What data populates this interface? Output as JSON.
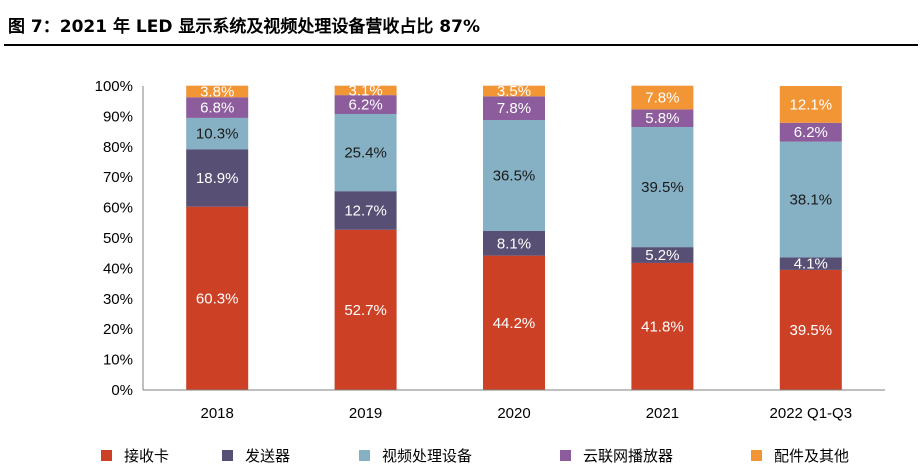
{
  "figure_title": "图 7：2021 年 LED 显示系统及视频处理设备营收占比 87%",
  "chart_data": {
    "type": "bar",
    "stacked": true,
    "categories": [
      "2018",
      "2019",
      "2020",
      "2021",
      "2022 Q1-Q3"
    ],
    "y_ticks": [
      "0%",
      "10%",
      "20%",
      "30%",
      "40%",
      "50%",
      "60%",
      "70%",
      "80%",
      "90%",
      "100%"
    ],
    "ylim": [
      0,
      100
    ],
    "unit": "%",
    "grid": false,
    "legend_position": "bottom",
    "series": [
      {
        "name": "接收卡",
        "color": "#CC4125",
        "values": [
          60.3,
          52.7,
          44.2,
          41.8,
          39.5
        ],
        "labels": [
          "60.3%",
          "52.7%",
          "44.2%",
          "41.8%",
          "39.5%"
        ]
      },
      {
        "name": "发送器",
        "color": "#574F74",
        "values": [
          18.9,
          12.7,
          8.1,
          5.2,
          4.1
        ],
        "labels": [
          "18.9%",
          "12.7%",
          "8.1%",
          "5.2%",
          "4.1%"
        ]
      },
      {
        "name": "视频处理设备",
        "color": "#86B1C4",
        "values": [
          10.3,
          25.4,
          36.5,
          39.5,
          38.1
        ],
        "labels": [
          "10.3%",
          "25.4%",
          "36.5%",
          "39.5%",
          "38.1%"
        ]
      },
      {
        "name": "云联网播放器",
        "color": "#8C5C9C",
        "values": [
          6.8,
          6.2,
          7.8,
          5.8,
          6.2
        ],
        "labels": [
          "6.8%",
          "6.2%",
          "7.8%",
          "5.8%",
          "6.2%"
        ]
      },
      {
        "name": "配件及其他",
        "color": "#F29535",
        "values": [
          3.8,
          3.1,
          3.5,
          7.8,
          12.1
        ],
        "labels": [
          "3.8%",
          "3.1%",
          "3.5%",
          "7.8%",
          "12.1%"
        ]
      }
    ]
  }
}
